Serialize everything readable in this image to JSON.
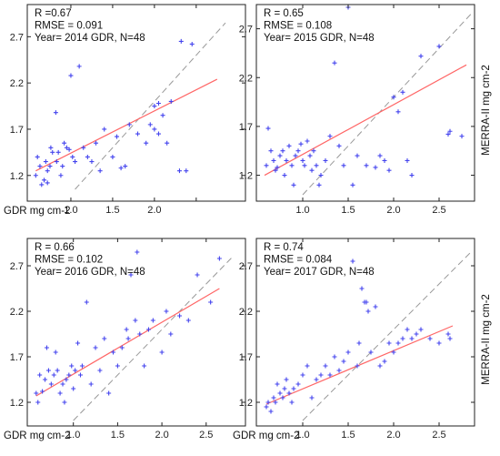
{
  "colors": {
    "points": "#4444ee",
    "fit": "#ff6666",
    "one_to_one": "#999999"
  },
  "chart_data": [
    {
      "type": "scatter",
      "annotation": [
        "R =0.67",
        "RMSE = 0.091",
        "Year= 2014 GDR, N=48"
      ],
      "xlabel": "GDR mg cm-2",
      "ylabel": "",
      "xlim": [
        0.5,
        2.85
      ],
      "ylim": [
        1.05,
        2.92
      ],
      "xticks": [
        1.0,
        1.5,
        2.0,
        2.5
      ],
      "xtick_labels": [
        "1.0",
        "1.5",
        "2.0",
        ""
      ],
      "yticks": [
        1.2,
        1.7,
        2.2,
        2.7
      ],
      "ytick_labels": [
        "1.2",
        "1.7",
        "2.2",
        "2.7"
      ],
      "fit_line": {
        "x": [
          0.58,
          2.75
        ],
        "y": [
          1.25,
          2.24
        ]
      },
      "one_to_one_line": true,
      "grid": false,
      "points": {
        "x": [
          0.58,
          0.6,
          0.63,
          0.65,
          0.68,
          0.7,
          0.72,
          0.72,
          0.75,
          0.76,
          0.78,
          0.82,
          0.83,
          0.85,
          0.88,
          0.9,
          0.92,
          0.95,
          0.98,
          1.0,
          1.02,
          1.05,
          1.1,
          1.15,
          1.2,
          1.25,
          1.3,
          1.35,
          1.4,
          1.5,
          1.55,
          1.6,
          1.65,
          1.7,
          1.8,
          1.9,
          1.95,
          2.0,
          2.0,
          2.05,
          2.05,
          2.1,
          2.15,
          2.2,
          2.3,
          2.32,
          2.38,
          2.45
        ],
        "y": [
          1.2,
          1.4,
          1.3,
          1.1,
          1.15,
          1.35,
          1.25,
          1.12,
          1.3,
          1.5,
          1.45,
          1.88,
          1.35,
          1.45,
          1.2,
          1.3,
          1.55,
          1.5,
          1.48,
          2.28,
          1.4,
          1.35,
          2.38,
          1.5,
          1.4,
          1.35,
          1.55,
          1.25,
          1.7,
          1.4,
          1.62,
          1.28,
          1.3,
          1.75,
          1.65,
          1.55,
          1.75,
          1.95,
          1.7,
          1.98,
          1.65,
          1.85,
          1.55,
          2.0,
          1.25,
          2.65,
          1.25,
          2.62
        ]
      }
    },
    {
      "type": "scatter",
      "annotation": [
        "R = 0.65",
        "RMSE = 0.108",
        "Year= 2015 GDR, N=48"
      ],
      "xlabel": "",
      "ylabel": "MERRA-II  mg cm-2",
      "xlim": [
        0.55,
        2.85
      ],
      "ylim": [
        1.0,
        2.92
      ],
      "xticks": [
        1.0,
        1.5,
        2.0,
        2.5
      ],
      "xtick_labels": [
        "1.0",
        "1.5",
        "2.0",
        "2.5"
      ],
      "yticks": [
        1.2,
        1.7,
        2.2,
        2.7
      ],
      "ytick_labels": [
        "1.2",
        "1.7",
        "2.2",
        "2.7"
      ],
      "fit_line": {
        "x": [
          0.58,
          2.8
        ],
        "y": [
          1.2,
          2.33
        ]
      },
      "one_to_one_line": true,
      "grid": false,
      "points": {
        "x": [
          0.6,
          0.62,
          0.65,
          0.68,
          0.7,
          0.72,
          0.75,
          0.78,
          0.8,
          0.82,
          0.85,
          0.88,
          0.9,
          0.92,
          0.95,
          0.98,
          1.0,
          1.02,
          1.05,
          1.08,
          1.1,
          1.12,
          1.15,
          1.18,
          1.2,
          1.25,
          1.3,
          1.35,
          1.4,
          1.45,
          1.5,
          1.55,
          1.6,
          1.7,
          1.8,
          1.85,
          1.9,
          1.95,
          2.0,
          2.05,
          2.1,
          2.15,
          2.2,
          2.3,
          2.5,
          2.6,
          2.62,
          2.75
        ],
        "y": [
          1.3,
          1.68,
          1.45,
          1.35,
          1.25,
          1.28,
          1.4,
          1.45,
          1.2,
          1.35,
          1.5,
          1.3,
          1.1,
          1.4,
          1.45,
          1.52,
          1.35,
          1.3,
          1.55,
          1.4,
          1.25,
          1.45,
          1.3,
          1.1,
          1.2,
          1.35,
          1.6,
          2.35,
          1.5,
          1.3,
          2.92,
          1.1,
          1.4,
          1.3,
          1.28,
          1.4,
          1.35,
          1.25,
          2.0,
          1.85,
          2.05,
          1.35,
          1.2,
          2.42,
          2.52,
          1.62,
          1.65,
          1.6
        ]
      }
    },
    {
      "type": "scatter",
      "annotation": [
        "R = 0.66",
        "RMSE = 0.102",
        "Year= 2016 GDR, N=48"
      ],
      "xlabel": "GDR mg cm-2",
      "ylabel": "",
      "xlim": [
        0.5,
        2.8
      ],
      "ylim": [
        1.0,
        2.92
      ],
      "xticks": [
        1.0,
        1.5,
        2.0,
        2.5
      ],
      "xtick_labels": [
        "1.0",
        "1.5",
        "2.0",
        "2.5"
      ],
      "yticks": [
        1.2,
        1.7,
        2.2,
        2.7
      ],
      "ytick_labels": [
        "1.2",
        "1.7",
        "2.2",
        "2.7"
      ],
      "fit_line": {
        "x": [
          0.58,
          2.65
        ],
        "y": [
          1.27,
          2.45
        ]
      },
      "one_to_one_line": true,
      "grid": false,
      "points": {
        "x": [
          0.58,
          0.6,
          0.62,
          0.65,
          0.68,
          0.7,
          0.72,
          0.75,
          0.78,
          0.8,
          0.82,
          0.85,
          0.88,
          0.9,
          0.92,
          0.95,
          0.98,
          1.0,
          1.02,
          1.05,
          1.08,
          1.1,
          1.15,
          1.2,
          1.25,
          1.3,
          1.35,
          1.4,
          1.45,
          1.5,
          1.55,
          1.6,
          1.62,
          1.65,
          1.7,
          1.72,
          1.75,
          1.8,
          1.85,
          1.9,
          2.0,
          2.05,
          2.1,
          2.2,
          2.3,
          2.4,
          2.55,
          2.65
        ],
        "y": [
          1.3,
          1.2,
          1.5,
          1.32,
          1.45,
          1.8,
          1.55,
          1.4,
          1.5,
          1.75,
          1.55,
          1.3,
          1.4,
          1.2,
          1.45,
          1.5,
          1.6,
          1.35,
          1.55,
          1.85,
          1.5,
          1.6,
          2.3,
          1.4,
          1.8,
          1.55,
          1.9,
          1.3,
          1.75,
          1.6,
          1.8,
          2.0,
          1.9,
          2.6,
          2.1,
          2.85,
          1.95,
          1.6,
          2.0,
          2.1,
          1.75,
          2.2,
          1.95,
          2.15,
          2.1,
          2.6,
          2.3,
          2.78
        ]
      }
    },
    {
      "type": "scatter",
      "annotation": [
        "R = 0.74",
        "RMSE = 0.084",
        "Year= 2017 GDR, N=48"
      ],
      "xlabel": "GDR mg cm-2",
      "ylabel": "MERRA-II  mg cm-2",
      "xlim": [
        0.55,
        2.85
      ],
      "ylim": [
        1.0,
        2.92
      ],
      "xticks": [
        1.0,
        1.5,
        2.0,
        2.5
      ],
      "xtick_labels": [
        "1.0",
        "1.5",
        "2.0",
        "2.5"
      ],
      "yticks": [
        1.2,
        1.7,
        2.2,
        2.7
      ],
      "ytick_labels": [
        "1.2",
        "1.7",
        "2.2",
        "2.7"
      ],
      "fit_line": {
        "x": [
          0.6,
          2.65
        ],
        "y": [
          1.18,
          2.04
        ]
      },
      "one_to_one_line": true,
      "grid": false,
      "points": {
        "x": [
          0.6,
          0.62,
          0.65,
          0.68,
          0.7,
          0.72,
          0.75,
          0.78,
          0.8,
          0.82,
          0.85,
          0.88,
          0.9,
          0.95,
          1.0,
          1.05,
          1.1,
          1.15,
          1.2,
          1.25,
          1.3,
          1.35,
          1.4,
          1.45,
          1.5,
          1.55,
          1.6,
          1.62,
          1.65,
          1.68,
          1.7,
          1.72,
          1.75,
          1.8,
          1.85,
          1.9,
          1.95,
          2.0,
          2.05,
          2.1,
          2.15,
          2.2,
          2.25,
          2.3,
          2.4,
          2.5,
          2.6,
          2.62
        ],
        "y": [
          1.15,
          1.2,
          1.1,
          1.25,
          1.2,
          1.4,
          1.3,
          1.25,
          1.35,
          1.45,
          1.3,
          1.2,
          1.35,
          1.4,
          1.5,
          1.6,
          1.25,
          1.45,
          1.5,
          1.6,
          1.5,
          1.7,
          1.55,
          1.65,
          1.75,
          2.75,
          1.6,
          1.85,
          2.45,
          2.3,
          2.3,
          2.2,
          1.75,
          2.25,
          1.6,
          1.65,
          1.85,
          1.75,
          1.85,
          1.9,
          2.0,
          1.9,
          1.95,
          2.0,
          1.9,
          1.85,
          1.95,
          1.9
        ]
      }
    }
  ]
}
